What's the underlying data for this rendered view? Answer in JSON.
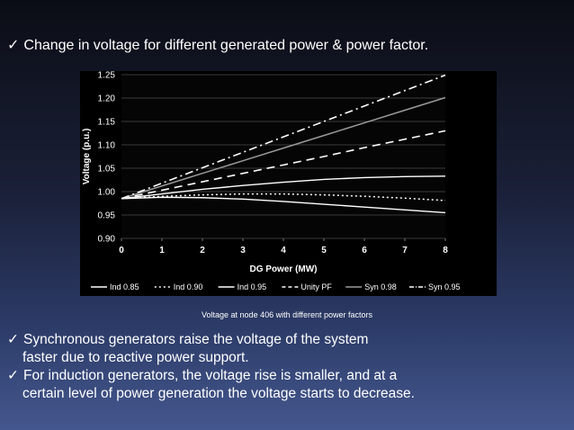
{
  "slide": {
    "title": "Change in voltage for different generated power & power factor.",
    "caption": "Voltage at node 406 with different power factors",
    "bullets": [
      {
        "line1": "Synchronous generators raise the voltage of the system",
        "line2": "faster due to reactive power support."
      },
      {
        "line1": "For induction generators, the voltage rise is smaller, and at  a",
        "line2": "certain level of power generation the voltage starts to decrease."
      }
    ],
    "check_glyph": "✓"
  },
  "chart_data": {
    "type": "line",
    "xlabel": "DG Power (MW)",
    "ylabel": "Voltage (p.u.)",
    "xlim": [
      0,
      8
    ],
    "ylim": [
      0.9,
      1.25
    ],
    "xticks": [
      "0",
      "1",
      "2",
      "3",
      "4",
      "5",
      "6",
      "7",
      "8"
    ],
    "yticks": [
      "0.90",
      "0.95",
      "1.00",
      "1.05",
      "1.10",
      "1.15",
      "1.20",
      "1.25"
    ],
    "grid": "horizontal",
    "legend_position": "bottom",
    "x": [
      0,
      1,
      2,
      3,
      4,
      5,
      6,
      7,
      8
    ],
    "series": [
      {
        "name": "Ind 0.85",
        "style": "solid",
        "values": [
          0.985,
          0.988,
          0.987,
          0.984,
          0.979,
          0.973,
          0.967,
          0.961,
          0.955
        ]
      },
      {
        "name": "Ind 0.90",
        "style": "dotted",
        "values": [
          0.985,
          0.99,
          0.993,
          0.995,
          0.995,
          0.993,
          0.99,
          0.986,
          0.981
        ]
      },
      {
        "name": "Ind 0.95",
        "style": "solid",
        "values": [
          0.985,
          0.995,
          1.005,
          1.013,
          1.02,
          1.026,
          1.03,
          1.032,
          1.033
        ]
      },
      {
        "name": "Unity PF",
        "style": "dashed",
        "values": [
          0.985,
          1.003,
          1.021,
          1.039,
          1.057,
          1.075,
          1.094,
          1.112,
          1.13
        ]
      },
      {
        "name": "Syn 0.98",
        "style": "solid-gray",
        "values": [
          0.985,
          1.012,
          1.039,
          1.066,
          1.093,
          1.12,
          1.147,
          1.174,
          1.201
        ]
      },
      {
        "name": "Syn 0.95",
        "style": "dashdot",
        "values": [
          0.985,
          1.018,
          1.051,
          1.084,
          1.117,
          1.15,
          1.183,
          1.216,
          1.249
        ]
      }
    ],
    "colors": {
      "background": "#000000",
      "plot_bg": "#050505",
      "lines": "#ffffff",
      "gray_line": "#9a9a9a",
      "grid": "#3a3a3a"
    }
  }
}
